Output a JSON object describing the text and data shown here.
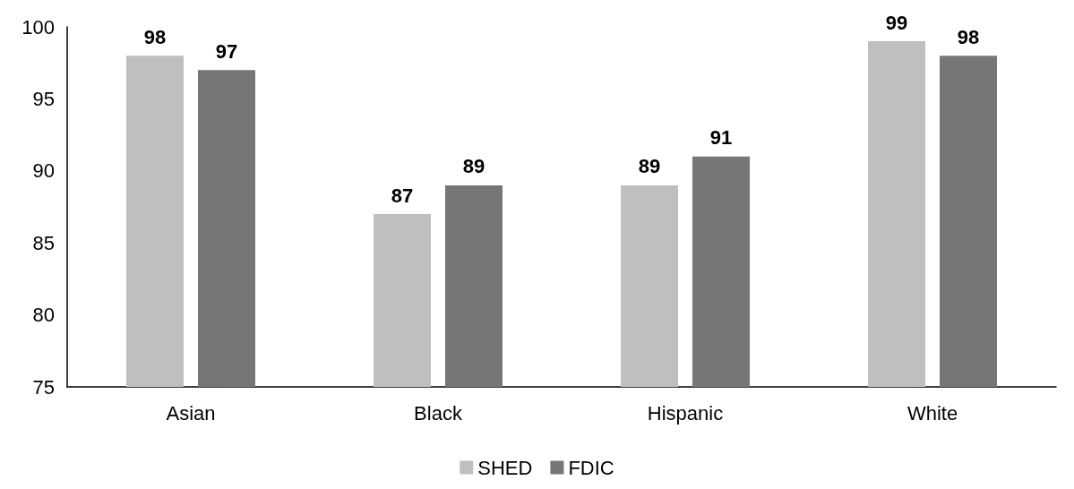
{
  "chart_data": {
    "type": "bar",
    "categories": [
      "Asian",
      "Black",
      "Hispanic",
      "White"
    ],
    "series": [
      {
        "name": "SHED",
        "color": "#bfbfbf",
        "values": [
          98,
          87,
          89,
          99
        ]
      },
      {
        "name": "FDIC",
        "color": "#767676",
        "values": [
          97,
          89,
          91,
          98
        ]
      }
    ],
    "ylim": [
      75,
      100
    ],
    "yticks": [
      75,
      80,
      85,
      90,
      95,
      100
    ],
    "grid": false,
    "legend": "bottom",
    "data_labels": true
  }
}
